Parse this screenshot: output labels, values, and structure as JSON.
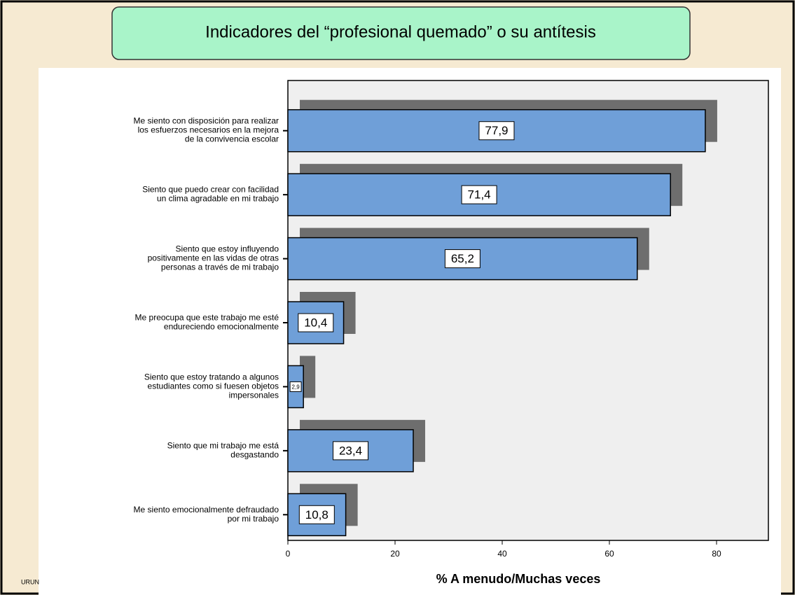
{
  "chart_data": {
    "type": "bar",
    "orientation": "horizontal",
    "title": "Indicadores del “profesional quemado” o su antítesis",
    "categories": [
      "Me siento con disposición para realizar\nlos esfuerzos necesarios en la mejora\nde la convivencia escolar",
      "Siento que puedo crear con facilidad\nun clima agradable en mi trabajo",
      "Siento que estoy influyendo\npositivamente en las vidas de otras\npersonas a través de mi trabajo",
      "Me preocupa que este trabajo me esté\nendureciendo emocionalmente",
      "Siento que estoy tratando a algunos\nestudiantes como si fuesen objetos\nimpersonales",
      "Siento que mi trabajo me está\ndesgastando",
      "Me siento emocionalmente defraudado\npor mi trabajo"
    ],
    "values": [
      77.9,
      71.4,
      65.2,
      10.4,
      2.9,
      23.4,
      10.8
    ],
    "value_labels": [
      "77,9",
      "71,4",
      "65,2",
      "10,4",
      "2,9",
      "23,4",
      "10,8"
    ],
    "color": "#6f9fd8",
    "xlabel": "% A menudo/Muchas veces",
    "xlim": [
      0,
      90
    ],
    "xticks": [
      0,
      20,
      40,
      60,
      80
    ],
    "footer": "URUN"
  }
}
